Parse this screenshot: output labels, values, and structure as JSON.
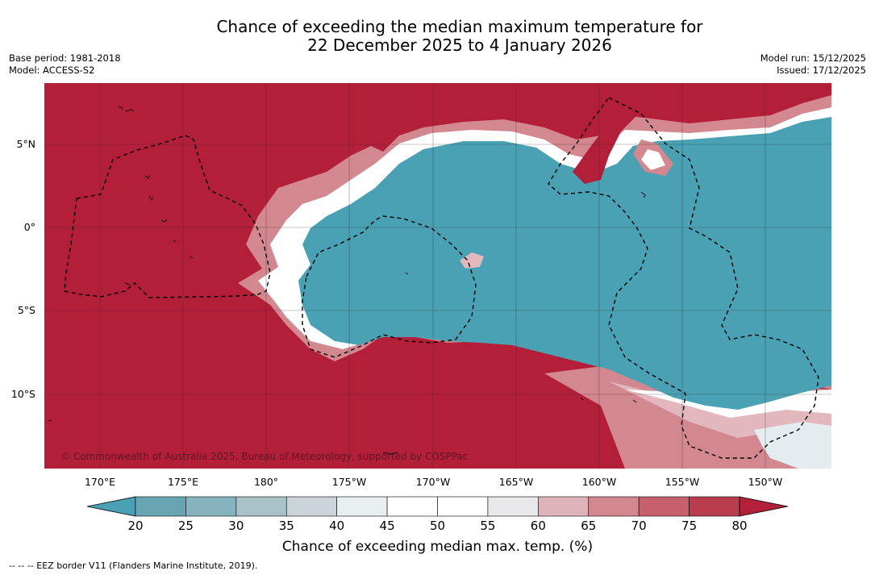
{
  "title": {
    "line1": "Chance of exceeding the median maximum temperature for",
    "line2": "22 December 2025 to 4 January 2026"
  },
  "meta_left": {
    "base_period": "Base period: 1981-2018",
    "model": "Model: ACCESS-S2"
  },
  "meta_right": {
    "model_run": "Model run: 15/12/2025",
    "issued": "Issued: 17/12/2025"
  },
  "map": {
    "lat_labels": [
      "5°N",
      "0°",
      "5°S",
      "10°S"
    ],
    "lon_labels": [
      "170°E",
      "175°E",
      "180°",
      "175°W",
      "170°W",
      "165°W",
      "160°W",
      "155°W",
      "150°W"
    ],
    "copyright": "© Commonwealth of Australia 2025, Bureau of Meteorology, supported by COSPPac",
    "colors": {
      "ocean_hot": "#b31e38",
      "ocean_cool": "#4aa1b3",
      "band_white": "#ffffff",
      "band_pink": "#d99aa2"
    }
  },
  "colorbar": {
    "ticks": [
      "20",
      "25",
      "30",
      "35",
      "40",
      "45",
      "50",
      "55",
      "60",
      "65",
      "70",
      "75",
      "80"
    ],
    "colors": [
      "#68a5b2",
      "#87b3bf",
      "#a8c2c8",
      "#cbd4d8",
      "#e9eef1",
      "#ffffff",
      "#ffffff",
      "#e8e8ea",
      "#deb4ba",
      "#d3878f",
      "#c6606b",
      "#ba3d4d"
    ],
    "low_extension": "#4aa1b3",
    "high_extension": "#b31e38",
    "label": "Chance of exceeding median max. temp. (%)"
  },
  "footer": "--  --  -- EEZ border V11 (Flanders Marine Institute, 2019)."
}
